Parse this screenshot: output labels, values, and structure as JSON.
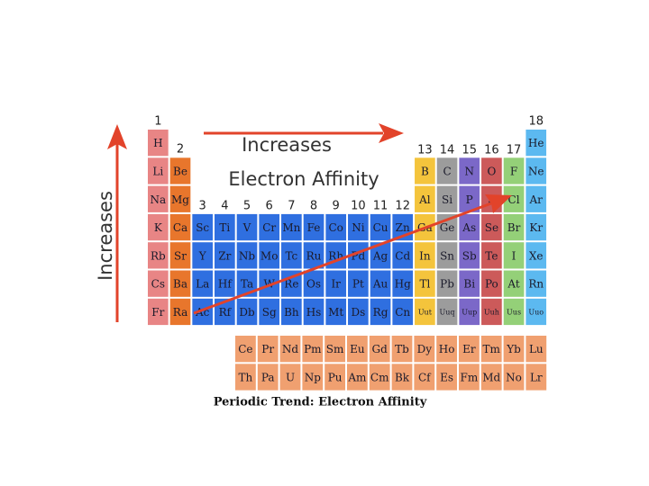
{
  "arrow_text_top": "Increases",
  "arrow_text_side": "Increases",
  "heading": "Electron Affinity",
  "caption": "Periodic Trend: Electron Affinity",
  "groups": [
    "1",
    "2",
    "3",
    "4",
    "5",
    "6",
    "7",
    "8",
    "9",
    "10",
    "11",
    "12",
    "13",
    "14",
    "15",
    "16",
    "17",
    "18"
  ],
  "periods": [
    [
      "H",
      "He"
    ],
    [
      "Li",
      "Be",
      "B",
      "C",
      "N",
      "O",
      "F",
      "Ne"
    ],
    [
      "Na",
      "Mg",
      "Al",
      "Si",
      "P",
      "S",
      "Cl",
      "Ar"
    ],
    [
      "K",
      "Ca",
      "Sc",
      "Ti",
      "V",
      "Cr",
      "Mn",
      "Fe",
      "Co",
      "Ni",
      "Cu",
      "Zn",
      "Ga",
      "Ge",
      "As",
      "Se",
      "Br",
      "Kr"
    ],
    [
      "Rb",
      "Sr",
      "Y",
      "Zr",
      "Nb",
      "Mo",
      "Tc",
      "Ru",
      "Rh",
      "Pd",
      "Ag",
      "Cd",
      "In",
      "Sn",
      "Sb",
      "Te",
      "I",
      "Xe"
    ],
    [
      "Cs",
      "Ba",
      "La",
      "Hf",
      "Ta",
      "W",
      "Re",
      "Os",
      "Ir",
      "Pt",
      "Au",
      "Hg",
      "Tl",
      "Pb",
      "Bi",
      "Po",
      "At",
      "Rn"
    ],
    [
      "Fr",
      "Ra",
      "Ac",
      "Rf",
      "Db",
      "Sg",
      "Bh",
      "Hs",
      "Mt",
      "Ds",
      "Rg",
      "Cn",
      "Uut",
      "Uuq",
      "Uup",
      "Uuh",
      "Uus",
      "Uuo"
    ]
  ],
  "lanthanides": [
    "Ce",
    "Pr",
    "Nd",
    "Pm",
    "Sm",
    "Eu",
    "Gd",
    "Tb",
    "Dy",
    "Ho",
    "Er",
    "Tm",
    "Yb",
    "Lu"
  ],
  "actinides": [
    "Th",
    "Pa",
    "U",
    "Np",
    "Pu",
    "Am",
    "Cm",
    "Bk",
    "Cf",
    "Es",
    "Fm",
    "Md",
    "No",
    "Lr"
  ]
}
